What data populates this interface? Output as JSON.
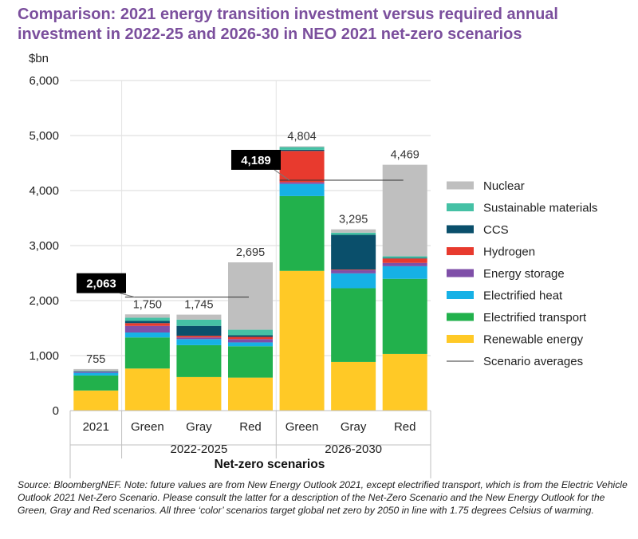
{
  "title": "Comparison: 2021 energy transition investment versus required annual investment in 2022-25 and 2026-30 in NEO 2021 net-zero scenarios",
  "source": "Source: BloombergNEF. Note: future values are from New Energy Outlook 2021, except electrified transport, which is from the Electric Vehicle Outlook 2021 Net-Zero Scenario. Please consult the latter for a description of the Net-Zero Scenario and the New Energy Outlook for the Green, Gray and Red scenarios. All three ‘color’ scenarios target global net zero by 2050 in line with 1.75 degrees Celsius of warming.",
  "chart_data": {
    "type": "bar",
    "stacked": true,
    "ylabel": "$bn",
    "xlabel": "Net-zero scenarios",
    "ylim": [
      0,
      6000
    ],
    "yticks": [
      0,
      1000,
      2000,
      3000,
      4000,
      5000,
      6000
    ],
    "ytick_labels": [
      "0",
      "1,000",
      "2,000",
      "3,000",
      "4,000",
      "5,000",
      "6,000"
    ],
    "grid": true,
    "legend_position": "right",
    "categories": [
      "2021",
      "Green",
      "Gray",
      "Red",
      "Green",
      "Gray",
      "Red"
    ],
    "groups": [
      {
        "label": "2022-2025",
        "categories": [
          "Green",
          "Gray",
          "Red"
        ]
      },
      {
        "label": "2026-2030",
        "categories": [
          "Green",
          "Gray",
          "Red"
        ]
      }
    ],
    "series": [
      {
        "name": "Renewable energy",
        "color": "#ffc926",
        "values": [
          366,
          765,
          610,
          600,
          2540,
          885,
          1030
        ]
      },
      {
        "name": "Electrified transport",
        "color": "#22b14c",
        "values": [
          273,
          565,
          580,
          570,
          1360,
          1340,
          1365
        ]
      },
      {
        "name": "Electrified heat",
        "color": "#16b1e6",
        "values": [
          50,
          90,
          110,
          70,
          220,
          270,
          230
        ]
      },
      {
        "name": "Energy storage",
        "color": "#7f4fa8",
        "values": [
          20,
          120,
          30,
          60,
          30,
          60,
          60
        ]
      },
      {
        "name": "Hydrogen",
        "color": "#e83a2e",
        "values": [
          2,
          50,
          30,
          40,
          570,
          10,
          80
        ]
      },
      {
        "name": "CCS",
        "color": "#0a4f6b",
        "values": [
          4,
          40,
          180,
          30,
          20,
          630,
          10
        ]
      },
      {
        "name": "Sustainable materials",
        "color": "#45c1a5",
        "values": [
          10,
          60,
          115,
          100,
          50,
          40,
          30
        ]
      },
      {
        "name": "Nuclear",
        "color": "#bfbfbf",
        "values": [
          30,
          60,
          90,
          1225,
          14,
          60,
          1664
        ]
      }
    ],
    "totals": [
      755,
      1750,
      1745,
      2695,
      4804,
      3295,
      4469
    ],
    "total_labels": [
      "755",
      "1,750",
      "1,745",
      "2,695",
      "4,804",
      "3,295",
      "4,469"
    ],
    "scenario_averages": [
      {
        "group": "2022-2025",
        "value": 2063,
        "label": "2,063"
      },
      {
        "group": "2026-2030",
        "value": 4189,
        "label": "4,189"
      }
    ],
    "scenario_average_legend": "Scenario averages"
  }
}
